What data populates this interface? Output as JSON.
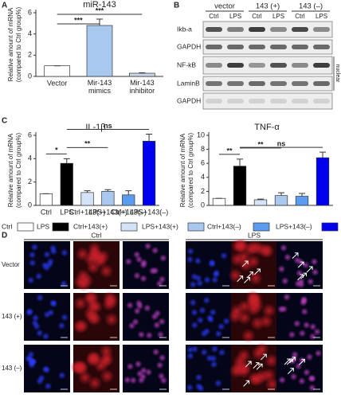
{
  "chart_data": [
    {
      "type": "bar",
      "letter": "A",
      "title": "miR-143",
      "ylabel": [
        "Relative amount of mRNA",
        "(compared to Ctrl group%)"
      ],
      "categories": [
        "Vector",
        "Mir-143 mimics",
        "Mir-143 inhibitor"
      ],
      "values": [
        1,
        4.8,
        0.3
      ],
      "errors": [
        0,
        0.6,
        0.05
      ],
      "colors": [
        "#ffffff",
        "#a9c8ef",
        "#c9d6e8"
      ],
      "ylim": [
        0,
        6
      ],
      "yticks": [
        0,
        2,
        4,
        6
      ],
      "annotations": [
        "***",
        "***"
      ]
    },
    {
      "type": "bar",
      "letter": "C",
      "title": "IL-1β",
      "ylabel": [
        "Relative amount of mRNA",
        "(compared to Ctrl group%)"
      ],
      "categories": [
        "Ctrl",
        "LPS",
        "Ctrl+143(+)",
        "LPS+143(+)",
        "Ctrl+143(–)",
        "LPS+143(–)"
      ],
      "values": [
        1,
        3.6,
        1.1,
        1.2,
        0.9,
        5.5
      ],
      "errors": [
        0,
        0.4,
        0.15,
        0.15,
        0.35,
        0.6
      ],
      "colors": [
        "#ffffff",
        "#000000",
        "#d3e4f8",
        "#a9c8ef",
        "#5b9bf0",
        "#0000ee"
      ],
      "ylim": [
        0,
        6
      ],
      "yticks": [
        0,
        2,
        4,
        6
      ],
      "annotations": [
        "*",
        "**",
        "ns"
      ]
    },
    {
      "type": "bar",
      "title": "TNF-α",
      "ylabel": [
        "Relative amount of mRNA",
        "(compared to Ctrl group%)"
      ],
      "values": [
        1,
        5.6,
        0.8,
        1.4,
        1.3,
        6.8
      ],
      "errors": [
        0,
        1.0,
        0.1,
        0.4,
        0.4,
        0.8
      ],
      "colors": [
        "#ffffff",
        "#000000",
        "#d3e4f8",
        "#a9c8ef",
        "#5b9bf0",
        "#0000ee"
      ],
      "ylim": [
        0,
        10
      ],
      "yticks": [
        0,
        2,
        4,
        6,
        8,
        10
      ],
      "annotations": [
        "**",
        "**",
        "ns"
      ]
    }
  ],
  "blot": {
    "letter": "B",
    "groups": [
      "vector",
      "143 (+)",
      "143 (–)"
    ],
    "lanes": [
      "Ctrl",
      "LPS",
      "Ctrl",
      "LPS",
      "Ctrl",
      "LPS"
    ],
    "rows": [
      "Ikb-a",
      "GAPDH",
      "NF-kB",
      "LaminB",
      "GAPDH"
    ],
    "side_label": "nuclear"
  },
  "microscopy": {
    "letter": "D",
    "conditions": [
      "Ctrl",
      "LPS"
    ],
    "rows": [
      "Vector",
      "143 (+)",
      "143 (–)"
    ]
  }
}
